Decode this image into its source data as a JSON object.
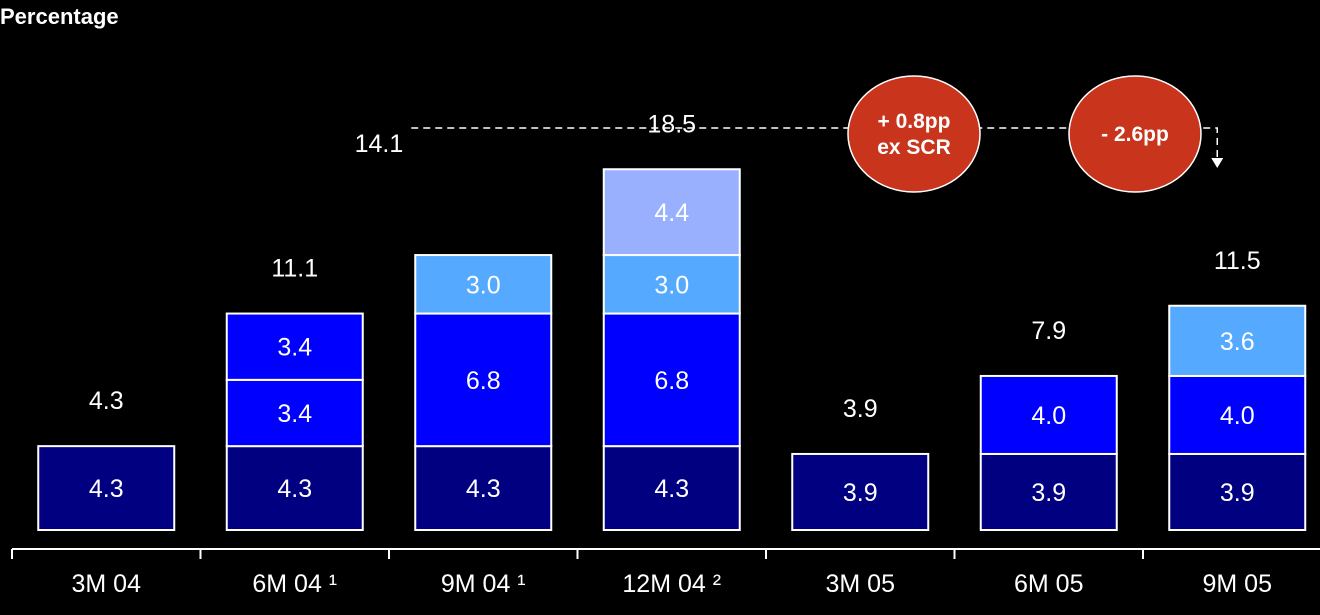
{
  "chart_data": {
    "type": "bar",
    "stacked": true,
    "ylabel": "Percentage",
    "categories": [
      "3M 04",
      "6M 04 ¹",
      "9M 04 ¹",
      "12M 04 ²",
      "3M 05",
      "6M 05",
      "9M 05"
    ],
    "totals": [
      4.3,
      11.1,
      14.1,
      18.5,
      3.9,
      7.9,
      11.5
    ],
    "segments": [
      [
        {
          "value": 4.3,
          "color": "#000080"
        }
      ],
      [
        {
          "value": 4.3,
          "color": "#000080"
        },
        {
          "value": 3.4,
          "color": "#0000FF"
        },
        {
          "value": 3.4,
          "color": "#0000FF"
        }
      ],
      [
        {
          "value": 4.3,
          "color": "#000080"
        },
        {
          "value": 6.8,
          "color": "#0000FF"
        },
        {
          "value": 3.0,
          "color": "#55AAFF"
        }
      ],
      [
        {
          "value": 4.3,
          "color": "#000080"
        },
        {
          "value": 6.8,
          "color": "#0000FF"
        },
        {
          "value": 3.0,
          "color": "#55AAFF"
        },
        {
          "value": 4.4,
          "color": "#99B0FF"
        }
      ],
      [
        {
          "value": 3.9,
          "color": "#000080"
        }
      ],
      [
        {
          "value": 3.9,
          "color": "#000080"
        },
        {
          "value": 4.0,
          "color": "#0000FF"
        }
      ],
      [
        {
          "value": 3.9,
          "color": "#000080"
        },
        {
          "value": 4.0,
          "color": "#0000FF"
        },
        {
          "value": 3.6,
          "color": "#55AAFF"
        }
      ]
    ],
    "annotations": [
      {
        "line1": "+ 0.8pp",
        "line2": "ex SCR"
      },
      {
        "line1": "- 2.6pp",
        "line2": ""
      }
    ]
  }
}
